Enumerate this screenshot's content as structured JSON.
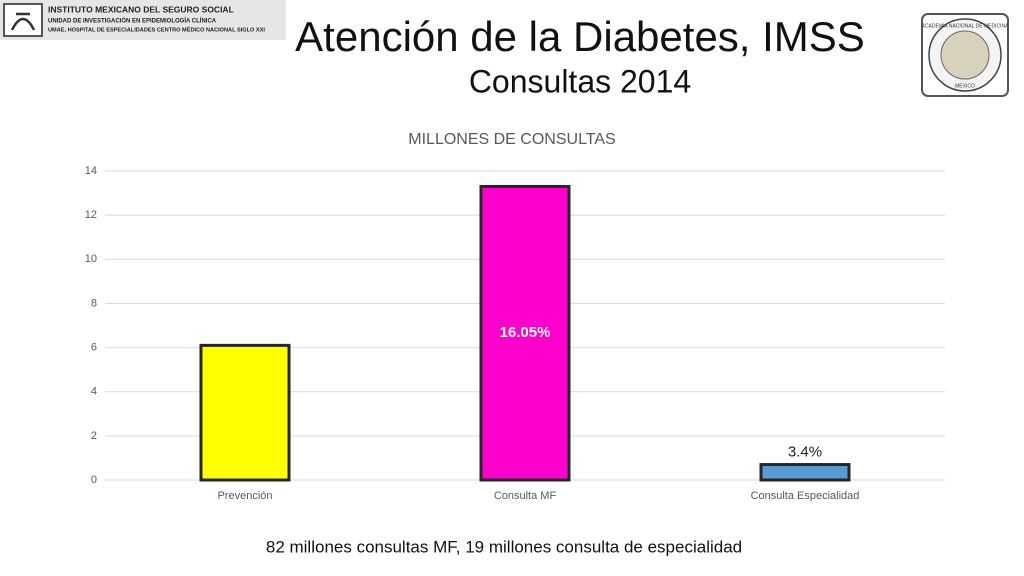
{
  "header": {
    "institution_lines": [
      "INSTITUTO MEXICANO DEL SEGURO SOCIAL",
      "UNIDAD DE INVESTIGACIÓN EN EPIDEMIOLOGÍA CLÍNICA",
      "UMAE, HOSPITAL DE ESPECIALIDADES CENTRO MÉDICO NACIONAL SIGLO XXI"
    ],
    "title": "Atención de la Diabetes, IMSS",
    "subtitle": "Consultas 2014",
    "academy_lines": [
      "ACADEMIA NACIONAL DE MEDICINA",
      "MÉXICO"
    ]
  },
  "chart_data": {
    "type": "bar",
    "title": "MILLONES DE CONSULTAS",
    "categories": [
      "Prevención",
      "Consulta MF",
      "Consulta Especialidad"
    ],
    "values": [
      6.1,
      13.3,
      0.7
    ],
    "colors": [
      "#ffff00",
      "#ff00cc",
      "#5b9bd5"
    ],
    "annotations": [
      {
        "category": "Consulta MF",
        "text": "16.05%"
      },
      {
        "category": "Consulta Especialidad",
        "text": "3.4%"
      }
    ],
    "ylim": [
      0,
      14
    ],
    "yticks": [
      0,
      2,
      4,
      6,
      8,
      10,
      12,
      14
    ],
    "grid": true
  },
  "footer": {
    "note": "82 millones consultas MF, 19 millones consulta de especialidad"
  }
}
